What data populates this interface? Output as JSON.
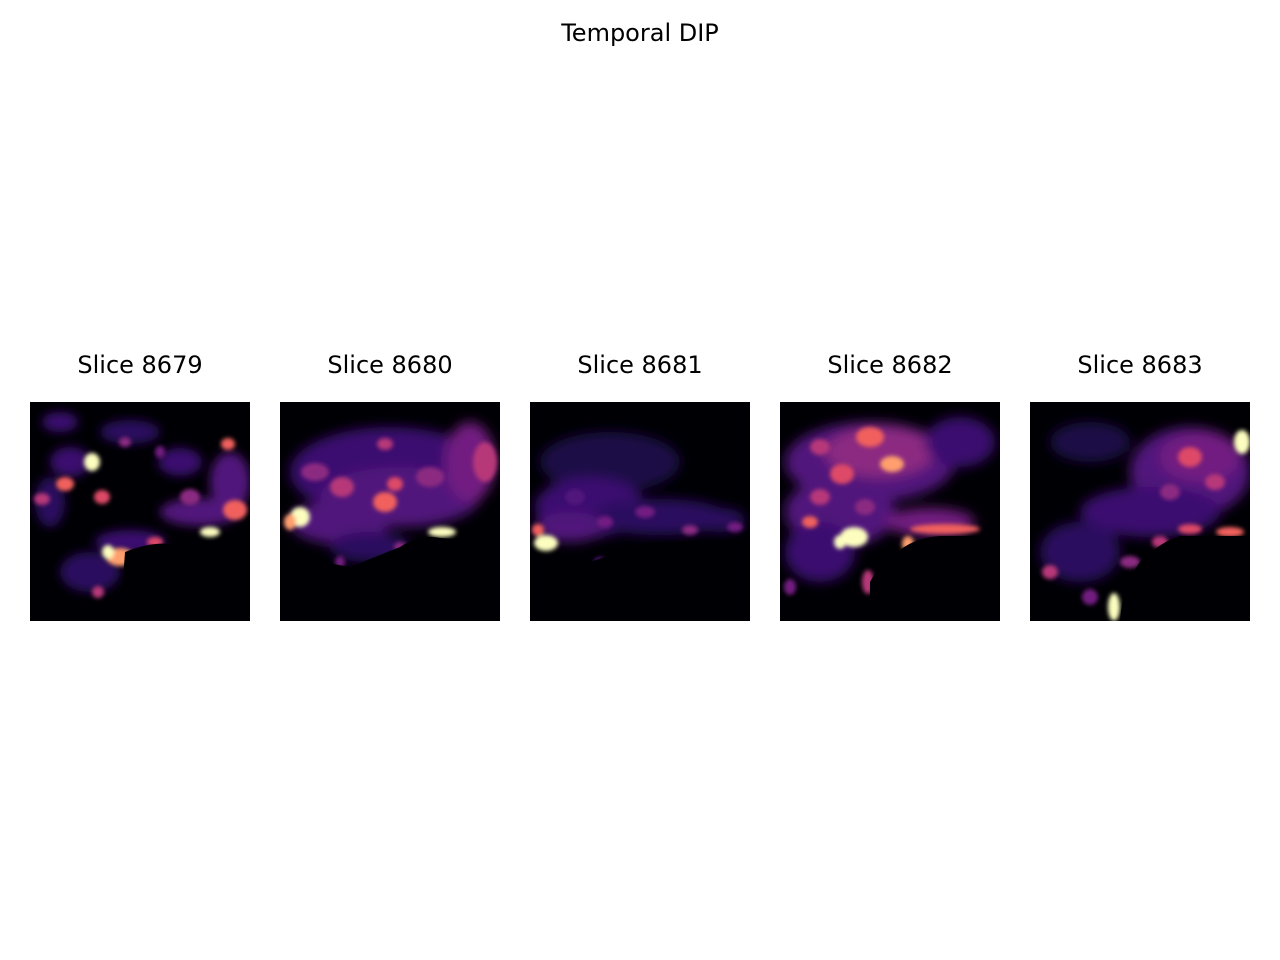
{
  "figure": {
    "title": "Temporal DIP",
    "colormap": "magma",
    "panels": [
      {
        "title": "Slice 8679"
      },
      {
        "title": "Slice 8680"
      },
      {
        "title": "Slice 8681"
      },
      {
        "title": "Slice 8682"
      },
      {
        "title": "Slice 8683"
      }
    ]
  }
}
